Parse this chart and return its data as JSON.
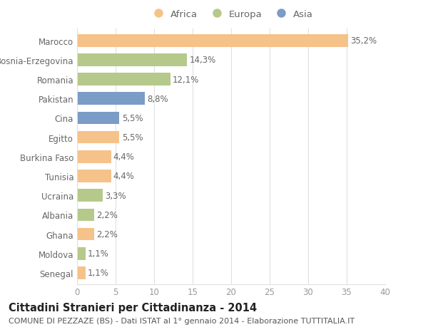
{
  "categories": [
    "Marocco",
    "Bosnia-Erzegovina",
    "Romania",
    "Pakistan",
    "Cina",
    "Egitto",
    "Burkina Faso",
    "Tunisia",
    "Ucraina",
    "Albania",
    "Ghana",
    "Moldova",
    "Senegal"
  ],
  "values": [
    35.2,
    14.3,
    12.1,
    8.8,
    5.5,
    5.5,
    4.4,
    4.4,
    3.3,
    2.2,
    2.2,
    1.1,
    1.1
  ],
  "labels": [
    "35,2%",
    "14,3%",
    "12,1%",
    "8,8%",
    "5,5%",
    "5,5%",
    "4,4%",
    "4,4%",
    "3,3%",
    "2,2%",
    "2,2%",
    "1,1%",
    "1,1%"
  ],
  "colors": [
    "#f5c28a",
    "#b5c98a",
    "#b5c98a",
    "#7a9cc6",
    "#7a9cc6",
    "#f5c28a",
    "#f5c28a",
    "#f5c28a",
    "#b5c98a",
    "#b5c98a",
    "#f5c28a",
    "#b5c98a",
    "#f5c28a"
  ],
  "legend": [
    {
      "label": "Africa",
      "color": "#f5c28a"
    },
    {
      "label": "Europa",
      "color": "#b5c98a"
    },
    {
      "label": "Asia",
      "color": "#7a9cc6"
    }
  ],
  "title": "Cittadini Stranieri per Cittadinanza - 2014",
  "subtitle": "COMUNE DI PEZZAZE (BS) - Dati ISTAT al 1° gennaio 2014 - Elaborazione TUTTITALIA.IT",
  "xlim": [
    0,
    40
  ],
  "xticks": [
    0,
    5,
    10,
    15,
    20,
    25,
    30,
    35,
    40
  ],
  "bg_color": "#ffffff",
  "grid_color": "#e0e0e0",
  "bar_height": 0.65,
  "label_fontsize": 8.5,
  "title_fontsize": 10.5,
  "subtitle_fontsize": 8,
  "ytick_fontsize": 8.5,
  "xtick_fontsize": 8.5
}
